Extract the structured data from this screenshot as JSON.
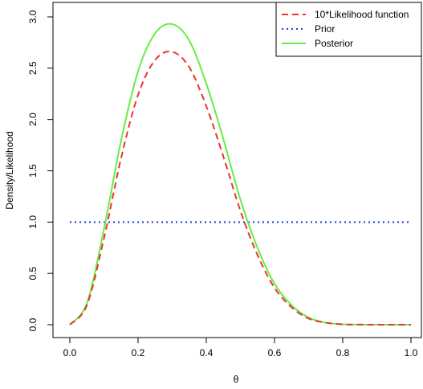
{
  "chart_data": {
    "type": "line",
    "title": "",
    "xlabel": "θ",
    "ylabel": "Density/Likelihood",
    "xlim": [
      0,
      1
    ],
    "ylim": [
      0,
      3
    ],
    "x_ticks": [
      0.0,
      0.2,
      0.4,
      0.6,
      0.8,
      1.0
    ],
    "x_tick_labels": [
      "0.0",
      "0.2",
      "0.4",
      "0.6",
      "0.8",
      "1.0"
    ],
    "y_ticks": [
      0.0,
      0.5,
      1.0,
      1.5,
      2.0,
      2.5,
      3.0
    ],
    "y_tick_labels": [
      "0.0",
      "0.5",
      "1.0",
      "1.5",
      "2.0",
      "2.5",
      "3.0"
    ],
    "grid": false,
    "legend_position": "top-right",
    "x": [
      0.0,
      0.05,
      0.1,
      0.15,
      0.2,
      0.25,
      0.3,
      0.35,
      0.4,
      0.45,
      0.5,
      0.55,
      0.6,
      0.65,
      0.7,
      0.75,
      0.8,
      0.85,
      0.9,
      0.95,
      1.0
    ],
    "series": [
      {
        "name": "10*Likelihood function",
        "color": "#e8352f",
        "line_style": "dashed",
        "values": [
          0.0,
          0.19,
          0.84,
          1.62,
          2.24,
          2.58,
          2.66,
          2.51,
          2.13,
          1.64,
          1.11,
          0.68,
          0.36,
          0.17,
          0.06,
          0.02,
          0.004,
          0.001,
          0.0,
          0.0,
          0.0
        ]
      },
      {
        "name": "Prior",
        "color": "#1f3fd6",
        "line_style": "dotted",
        "values": [
          1,
          1,
          1,
          1,
          1,
          1,
          1,
          1,
          1,
          1,
          1,
          1,
          1,
          1,
          1,
          1,
          1,
          1,
          1,
          1,
          1
        ]
      },
      {
        "name": "Posterior",
        "color": "#66ee44",
        "line_style": "solid",
        "values": [
          0.0,
          0.21,
          0.93,
          1.79,
          2.47,
          2.84,
          2.93,
          2.77,
          2.35,
          1.81,
          1.22,
          0.75,
          0.4,
          0.19,
          0.07,
          0.02,
          0.004,
          0.001,
          0.0,
          0.0,
          0.0
        ]
      }
    ]
  }
}
